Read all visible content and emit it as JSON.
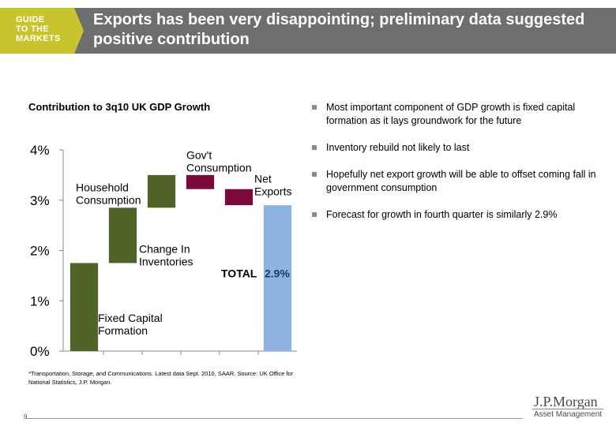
{
  "header": {
    "guide_line1": "GUIDE",
    "guide_line2": "TO THE",
    "guide_line3": "MARKETS",
    "title": "Exports has been very disappointing; preliminary data suggested positive contribution",
    "guide_color": "#c8c42c",
    "bar_color": "#6e6e6e"
  },
  "chart_data": {
    "type": "bar",
    "subtype": "waterfall",
    "title": "Contribution to 3q10 UK GDP Growth",
    "xlabel": "",
    "ylabel": "",
    "ylim": [
      0,
      4
    ],
    "y_ticks": [
      "0%",
      "1%",
      "2%",
      "3%",
      "4%"
    ],
    "grid": false,
    "bars": [
      {
        "label_lines": [
          "Fixed Capital",
          "Formation"
        ],
        "start": 0.0,
        "end": 1.75,
        "color": "#4f6228"
      },
      {
        "label_lines": [
          "Change In",
          "Inventories"
        ],
        "start": 1.75,
        "end": 2.85,
        "color": "#4f6228"
      },
      {
        "label_lines": [
          "Household",
          "Consumption"
        ],
        "start": 2.85,
        "end": 3.5,
        "color": "#4f6228"
      },
      {
        "label_lines": [
          "Gov't",
          "Consumption"
        ],
        "start": 3.5,
        "end": 3.22,
        "color": "#7b0a3b"
      },
      {
        "label_lines": [
          "Net",
          "Exports"
        ],
        "start": 3.22,
        "end": 2.9,
        "color": "#7b0a3b"
      },
      {
        "label_lines": [],
        "start": 0.0,
        "end": 2.9,
        "color": "#8db3e2"
      }
    ],
    "total_label": "TOTAL",
    "total_value": "2.9%"
  },
  "bullets": [
    "Most important component of GDP growth is fixed capital formation as it lays groundwork for the future",
    "Inventory rebuild not likely to last",
    "Hopefully net export growth will be able to offset coming fall in government consumption",
    "Forecast for growth in fourth quarter is similarly 2.9%"
  ],
  "footnote": "*Transportation, Storage, and Communications. Latest data Sept. 2010, SAAR. Source: UK Office for National Statistics, J.P. Morgan.",
  "footer": {
    "page_number": "9",
    "brand": "J.P.Morgan",
    "brand_sub": "Asset Management"
  }
}
